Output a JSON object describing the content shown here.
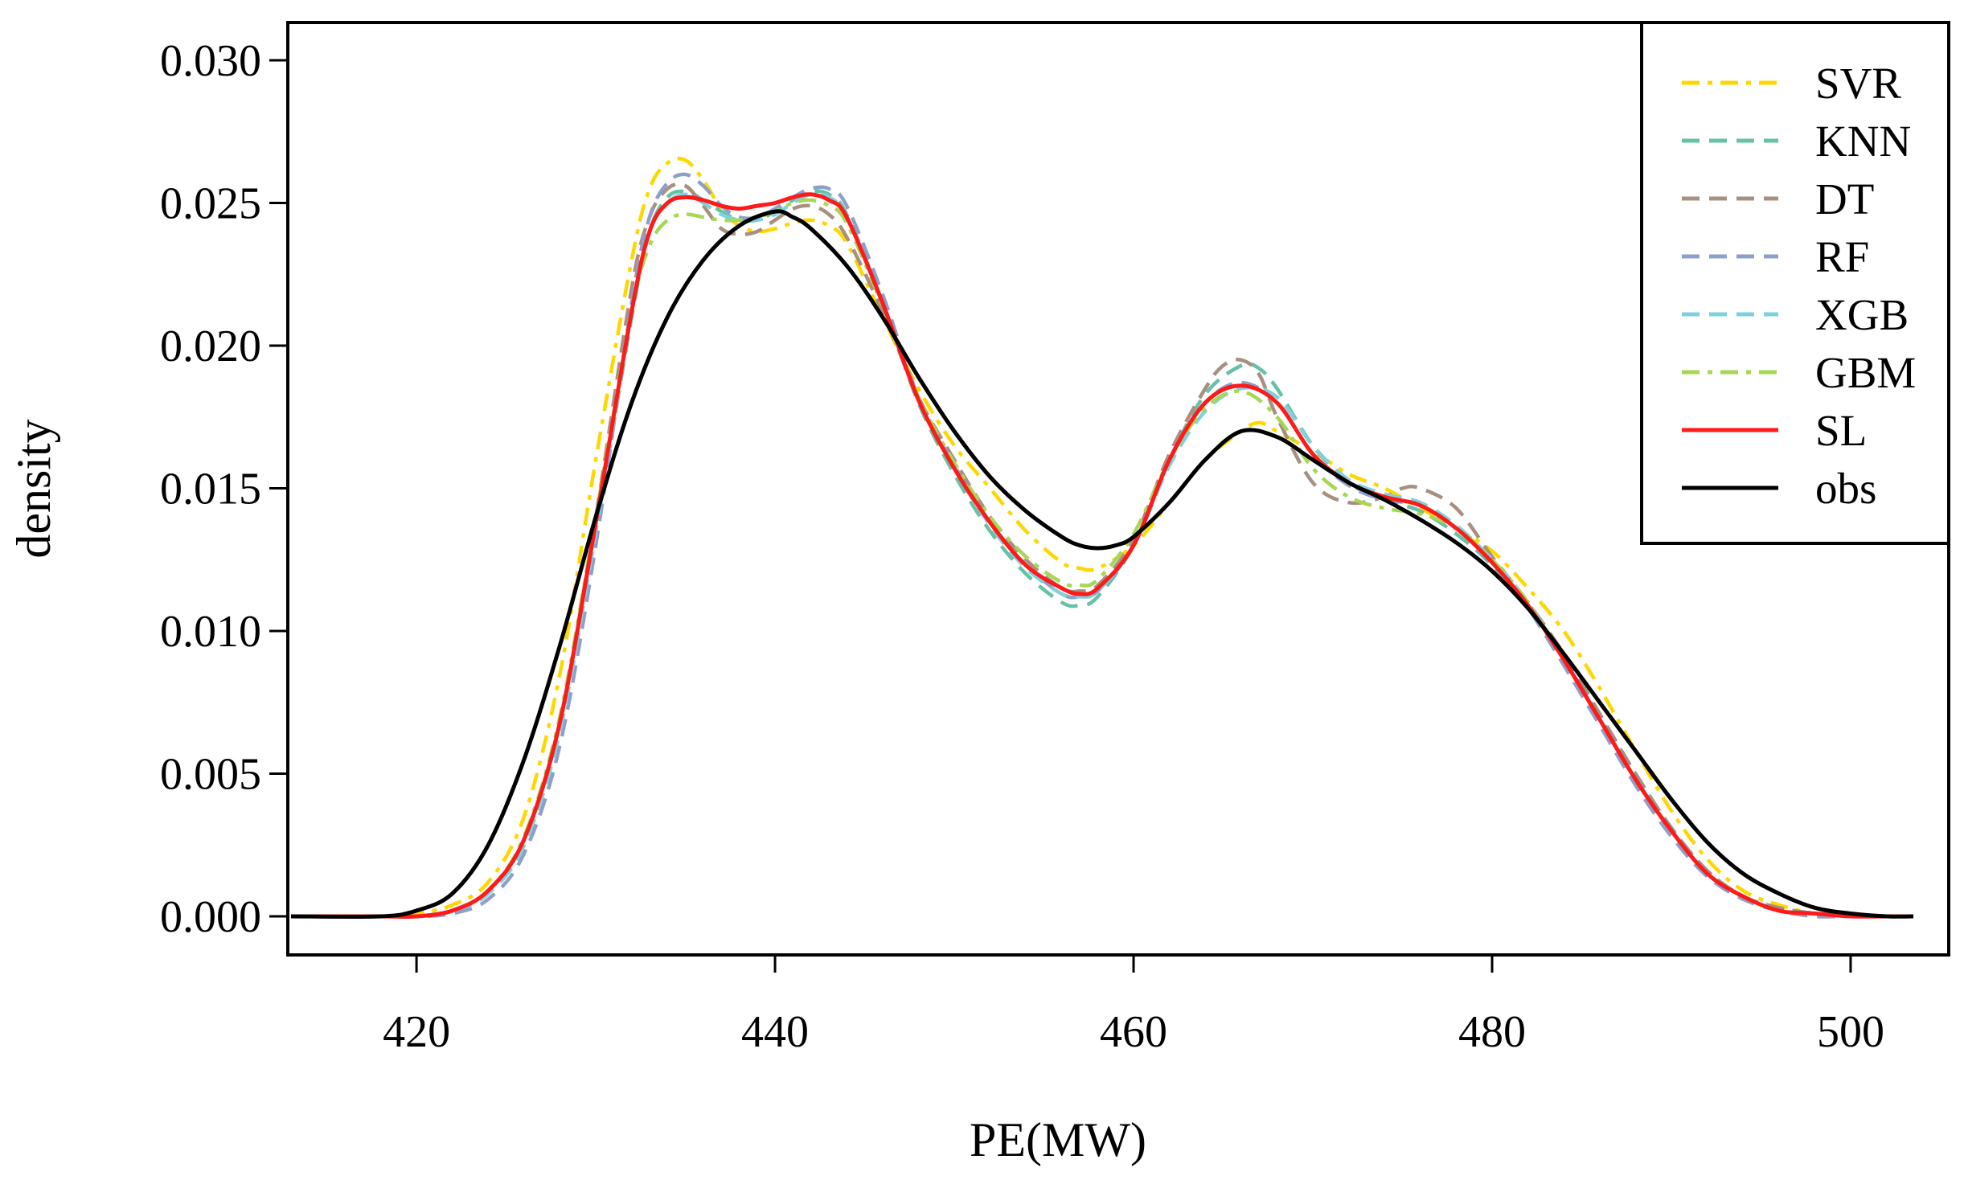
{
  "chart_data": {
    "type": "line",
    "title": "",
    "xlabel": "PE(MW)",
    "ylabel": "density",
    "xlim": [
      413,
      503.5
    ],
    "ylim": [
      0,
      0.03
    ],
    "xticks": [
      420,
      440,
      460,
      480,
      500
    ],
    "xtick_labels": [
      "420",
      "440",
      "460",
      "480",
      "500"
    ],
    "yticks": [
      0,
      0.005,
      0.01,
      0.015,
      0.02,
      0.025,
      0.03
    ],
    "ytick_labels": [
      "0.000",
      "0.005",
      "0.010",
      "0.015",
      "0.020",
      "0.025",
      "0.030"
    ],
    "legend_position": "top-right",
    "grid": false,
    "series": [
      {
        "name": "SVR",
        "color": "#FFD700",
        "dash": "dashdot",
        "x": [
          413,
          418,
          420,
          422,
          424,
          426,
          428,
          430,
          432,
          433,
          434,
          435,
          436,
          437,
          438,
          439,
          440,
          441,
          442,
          443,
          444,
          446,
          448,
          450,
          452,
          454,
          456,
          457,
          458,
          460,
          462,
          464,
          466,
          467,
          468,
          470,
          472,
          474,
          476,
          478,
          480,
          482,
          484,
          486,
          488,
          490,
          492,
          494,
          496,
          498,
          500,
          502,
          503.5
        ],
        "y": [
          0,
          0.0,
          0.0001,
          0.0004,
          0.0012,
          0.0035,
          0.0085,
          0.016,
          0.023,
          0.0255,
          0.0264,
          0.0265,
          0.0258,
          0.0248,
          0.0242,
          0.024,
          0.0241,
          0.0243,
          0.0244,
          0.0242,
          0.0236,
          0.021,
          0.0185,
          0.0165,
          0.015,
          0.0135,
          0.0124,
          0.0122,
          0.0122,
          0.013,
          0.0145,
          0.016,
          0.017,
          0.0173,
          0.017,
          0.0163,
          0.0155,
          0.015,
          0.0143,
          0.0136,
          0.0128,
          0.0115,
          0.01,
          0.008,
          0.0058,
          0.0037,
          0.002,
          0.0009,
          0.0004,
          0.0001,
          0.0,
          0,
          0
        ]
      },
      {
        "name": "KNN",
        "color": "#66C2A5",
        "dash": "dashed",
        "x": [
          413,
          418,
          420,
          422,
          424,
          426,
          428,
          430,
          432,
          433,
          434,
          435,
          436,
          437,
          438,
          439,
          440,
          441,
          442,
          443,
          444,
          446,
          448,
          450,
          452,
          454,
          456,
          457,
          458,
          460,
          462,
          464,
          466,
          467,
          468,
          470,
          472,
          474,
          476,
          478,
          480,
          482,
          484,
          486,
          488,
          490,
          492,
          494,
          496,
          498,
          500,
          502,
          503.5
        ],
        "y": [
          0,
          0.0,
          0.0,
          0.0002,
          0.0008,
          0.0025,
          0.0065,
          0.0135,
          0.021,
          0.024,
          0.0252,
          0.0254,
          0.0251,
          0.0247,
          0.0244,
          0.0244,
          0.0247,
          0.0251,
          0.0254,
          0.0253,
          0.0246,
          0.0215,
          0.018,
          0.0155,
          0.0135,
          0.012,
          0.011,
          0.0109,
          0.0112,
          0.013,
          0.016,
          0.0183,
          0.0193,
          0.0192,
          0.0185,
          0.0165,
          0.0152,
          0.0146,
          0.0142,
          0.0134,
          0.0123,
          0.0108,
          0.009,
          0.007,
          0.005,
          0.0031,
          0.0016,
          0.0007,
          0.0003,
          0.0001,
          0.0,
          0,
          0
        ]
      },
      {
        "name": "DT",
        "color": "#A89080",
        "dash": "dashed",
        "x": [
          413,
          418,
          420,
          422,
          424,
          426,
          428,
          430,
          432,
          433,
          434,
          435,
          436,
          437,
          438,
          439,
          440,
          441,
          442,
          443,
          444,
          446,
          448,
          450,
          452,
          454,
          456,
          457,
          458,
          460,
          462,
          464,
          465,
          466,
          467,
          468,
          470,
          472,
          474,
          475,
          476,
          478,
          480,
          482,
          484,
          486,
          488,
          490,
          492,
          494,
          496,
          498,
          500,
          502,
          503.5
        ],
        "y": [
          0,
          0.0,
          0.0,
          0.0002,
          0.0008,
          0.0026,
          0.0068,
          0.014,
          0.022,
          0.0245,
          0.0255,
          0.0256,
          0.0249,
          0.0241,
          0.0239,
          0.024,
          0.0244,
          0.0248,
          0.0249,
          0.0246,
          0.0238,
          0.0212,
          0.0182,
          0.016,
          0.014,
          0.0125,
          0.0115,
          0.0114,
          0.0116,
          0.0132,
          0.0162,
          0.0185,
          0.0193,
          0.0195,
          0.019,
          0.0175,
          0.0152,
          0.0145,
          0.0147,
          0.015,
          0.015,
          0.0143,
          0.0126,
          0.011,
          0.0092,
          0.0071,
          0.005,
          0.0031,
          0.0016,
          0.0007,
          0.0003,
          0.0001,
          0.0,
          0,
          0
        ]
      },
      {
        "name": "RF",
        "color": "#8DA0CB",
        "dash": "dashed",
        "x": [
          413,
          418,
          420,
          422,
          424,
          426,
          428,
          430,
          432,
          433,
          434,
          435,
          436,
          437,
          438,
          439,
          440,
          441,
          442,
          443,
          444,
          446,
          448,
          450,
          452,
          454,
          456,
          457,
          458,
          460,
          462,
          464,
          466,
          468,
          470,
          472,
          474,
          476,
          478,
          480,
          482,
          484,
          486,
          488,
          490,
          492,
          494,
          496,
          498,
          500,
          502,
          503.5
        ],
        "y": [
          0,
          0.0,
          0.0,
          0.0001,
          0.0006,
          0.0022,
          0.006,
          0.013,
          0.0215,
          0.0245,
          0.0257,
          0.026,
          0.0256,
          0.0249,
          0.0245,
          0.0245,
          0.0248,
          0.0252,
          0.0255,
          0.0255,
          0.0249,
          0.0218,
          0.0182,
          0.0158,
          0.0138,
          0.0123,
          0.0113,
          0.0112,
          0.0114,
          0.013,
          0.016,
          0.018,
          0.0187,
          0.018,
          0.0162,
          0.0151,
          0.0146,
          0.0144,
          0.0136,
          0.0124,
          0.0108,
          0.0088,
          0.0067,
          0.0046,
          0.0028,
          0.0014,
          0.0006,
          0.0002,
          0.0,
          0.0,
          0,
          0
        ]
      },
      {
        "name": "XGB",
        "color": "#7FD1DE",
        "dash": "dashed",
        "x": [
          413,
          418,
          420,
          422,
          424,
          426,
          428,
          430,
          432,
          433,
          434,
          435,
          436,
          437,
          438,
          439,
          440,
          441,
          442,
          443,
          444,
          446,
          448,
          450,
          452,
          454,
          456,
          457,
          458,
          460,
          462,
          464,
          466,
          468,
          470,
          472,
          474,
          476,
          478,
          480,
          482,
          484,
          486,
          488,
          490,
          492,
          494,
          496,
          498,
          500,
          502,
          503.5
        ],
        "y": [
          0,
          0.0,
          0.0,
          0.0002,
          0.0008,
          0.0025,
          0.0065,
          0.0135,
          0.0212,
          0.024,
          0.025,
          0.0253,
          0.025,
          0.0246,
          0.0244,
          0.0244,
          0.0246,
          0.025,
          0.0253,
          0.0252,
          0.0245,
          0.0215,
          0.0181,
          0.0157,
          0.0137,
          0.0122,
          0.0113,
          0.0112,
          0.0114,
          0.013,
          0.0158,
          0.0177,
          0.0185,
          0.0182,
          0.0165,
          0.0153,
          0.0148,
          0.0145,
          0.0137,
          0.0125,
          0.011,
          0.009,
          0.0069,
          0.0048,
          0.003,
          0.0015,
          0.0007,
          0.0002,
          0.0001,
          0.0,
          0,
          0
        ]
      },
      {
        "name": "GBM",
        "color": "#A6D854",
        "dash": "dashdot",
        "x": [
          413,
          418,
          420,
          422,
          424,
          426,
          428,
          430,
          432,
          433,
          434,
          435,
          436,
          437,
          438,
          439,
          440,
          441,
          442,
          443,
          444,
          446,
          448,
          450,
          452,
          454,
          456,
          457,
          458,
          460,
          462,
          464,
          466,
          468,
          470,
          472,
          474,
          476,
          478,
          480,
          482,
          484,
          486,
          488,
          490,
          492,
          494,
          496,
          498,
          500,
          502,
          503.5
        ],
        "y": [
          0,
          0.0,
          0.0,
          0.0002,
          0.0009,
          0.0028,
          0.007,
          0.014,
          0.0212,
          0.0235,
          0.0244,
          0.0246,
          0.0245,
          0.0244,
          0.0244,
          0.0245,
          0.0247,
          0.025,
          0.0251,
          0.0249,
          0.0243,
          0.0214,
          0.0182,
          0.0159,
          0.014,
          0.0126,
          0.0117,
          0.0116,
          0.0118,
          0.0134,
          0.016,
          0.0178,
          0.0184,
          0.0175,
          0.0157,
          0.0147,
          0.0143,
          0.0141,
          0.0136,
          0.0125,
          0.011,
          0.009,
          0.0069,
          0.0048,
          0.003,
          0.0015,
          0.0007,
          0.0002,
          0.0001,
          0.0,
          0,
          0
        ]
      },
      {
        "name": "SL",
        "color": "#FF1A1A",
        "dash": "solid",
        "x": [
          413,
          418,
          420,
          422,
          424,
          426,
          428,
          430,
          432,
          433,
          434,
          435,
          436,
          437,
          438,
          439,
          440,
          441,
          442,
          443,
          444,
          446,
          448,
          450,
          452,
          454,
          456,
          457,
          458,
          460,
          462,
          464,
          466,
          468,
          470,
          472,
          474,
          476,
          478,
          480,
          482,
          484,
          486,
          488,
          490,
          492,
          494,
          496,
          498,
          500,
          502,
          503.5
        ],
        "y": [
          0,
          0.0,
          0.0,
          0.0002,
          0.0009,
          0.0027,
          0.0068,
          0.0138,
          0.0212,
          0.024,
          0.025,
          0.0252,
          0.0251,
          0.0249,
          0.0248,
          0.0249,
          0.025,
          0.0252,
          0.0253,
          0.0251,
          0.0245,
          0.0215,
          0.0181,
          0.0157,
          0.0138,
          0.0123,
          0.0115,
          0.0113,
          0.0115,
          0.013,
          0.016,
          0.018,
          0.0186,
          0.018,
          0.0162,
          0.0152,
          0.0147,
          0.0144,
          0.0136,
          0.0124,
          0.0109,
          0.009,
          0.0069,
          0.0048,
          0.003,
          0.0015,
          0.0007,
          0.0002,
          0.0001,
          0.0,
          0,
          0
        ]
      },
      {
        "name": "obs",
        "color": "#000000",
        "dash": "solid",
        "x": [
          413,
          418,
          420,
          422,
          424,
          426,
          428,
          430,
          432,
          434,
          436,
          438,
          440,
          441,
          442,
          444,
          446,
          448,
          450,
          452,
          454,
          456,
          457,
          458,
          459,
          460,
          462,
          464,
          466,
          468,
          470,
          472,
          474,
          476,
          478,
          480,
          482,
          484,
          486,
          488,
          490,
          492,
          494,
          496,
          498,
          500,
          502,
          503.5
        ],
        "y": [
          0,
          0.0,
          0.0002,
          0.0008,
          0.0025,
          0.0055,
          0.0095,
          0.014,
          0.018,
          0.021,
          0.023,
          0.0242,
          0.0247,
          0.0245,
          0.0241,
          0.0228,
          0.021,
          0.0189,
          0.017,
          0.0154,
          0.0142,
          0.0133,
          0.013,
          0.0129,
          0.013,
          0.0133,
          0.0145,
          0.016,
          0.017,
          0.0168,
          0.016,
          0.0152,
          0.0146,
          0.0139,
          0.0131,
          0.0121,
          0.0108,
          0.0092,
          0.0075,
          0.0058,
          0.0041,
          0.0026,
          0.0015,
          0.0008,
          0.0003,
          0.0001,
          0.0,
          0
        ]
      }
    ]
  }
}
